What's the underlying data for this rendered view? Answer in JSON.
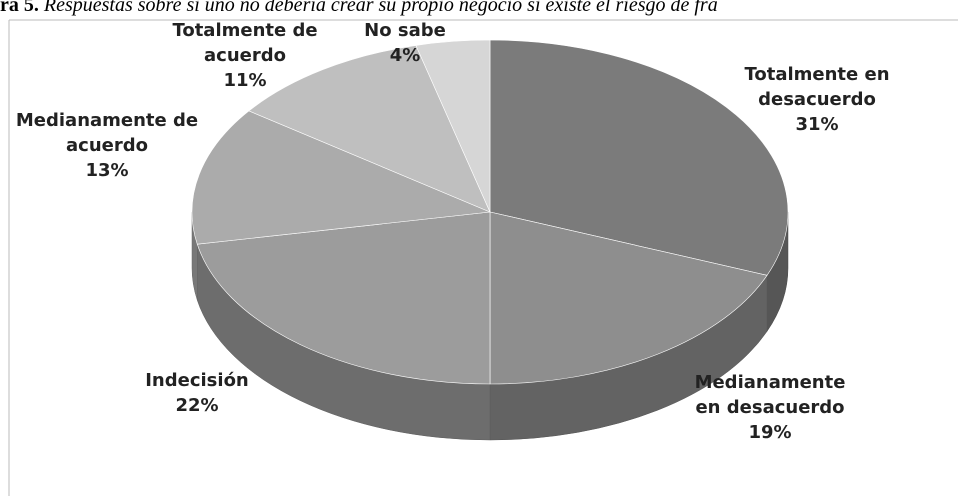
{
  "chart_data": {
    "type": "pie3d",
    "figure_label": "ra 5.",
    "title": "Respuestas sobre si uno no debería crear su propio negocio si existe el riesgo de fra",
    "categories": [
      "Totalmente en desacuerdo",
      "Medianamente en desacuerdo",
      "Indecisión",
      "Medianamente de acuerdo",
      "Totalmente de acuerdo",
      "No sabe"
    ],
    "values": [
      31,
      19,
      22,
      13,
      11,
      4
    ],
    "value_labels": [
      "31%",
      "19%",
      "22%",
      "13%",
      "11%",
      "4%"
    ],
    "colors": [
      "#7b7b7b",
      "#8e8e8e",
      "#9c9c9c",
      "#ababab",
      "#bfbfbf",
      "#d6d6d6"
    ]
  }
}
